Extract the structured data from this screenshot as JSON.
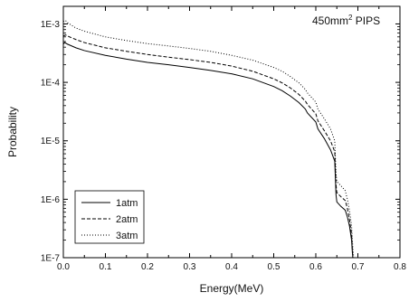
{
  "chart_data": {
    "type": "line",
    "title": "",
    "annotation": {
      "text": "450mm",
      "superscript": "2",
      "suffix": " PIPS"
    },
    "xlabel": "Energy(MeV)",
    "ylabel": "Probability",
    "xlim": [
      0.0,
      0.8
    ],
    "ylim": [
      1e-07,
      0.002
    ],
    "yscale": "log",
    "grid": false,
    "legend_position": "bottom-left",
    "x_ticks": [
      0.0,
      0.1,
      0.2,
      0.3,
      0.4,
      0.5,
      0.6,
      0.7,
      0.8
    ],
    "x_tick_labels": [
      "0.0",
      "0.1",
      "0.2",
      "0.3",
      "0.4",
      "0.5",
      "0.6",
      "0.7",
      "0.8"
    ],
    "y_ticks": [
      1e-07,
      1e-06,
      1e-05,
      0.0001,
      0.001
    ],
    "y_tick_labels": [
      "1E-7",
      "1E-6",
      "1E-5",
      "1E-4",
      "1E-3"
    ],
    "series": [
      {
        "name": "1atm",
        "style": "solid",
        "x": [
          0.0,
          0.003,
          0.01,
          0.03,
          0.05,
          0.1,
          0.15,
          0.2,
          0.25,
          0.3,
          0.35,
          0.4,
          0.45,
          0.5,
          0.52,
          0.54,
          0.56,
          0.575,
          0.58,
          0.6,
          0.605,
          0.62,
          0.635,
          0.645,
          0.648,
          0.65,
          0.66,
          0.67,
          0.675,
          0.68,
          0.685,
          0.687,
          0.688
        ],
        "y": [
          0.00045,
          0.00048,
          0.00045,
          0.00039,
          0.00035,
          0.00029,
          0.00025,
          0.00022,
          0.0002,
          0.00018,
          0.00016,
          0.00014,
          0.000115,
          8.5e-05,
          7.2e-05,
          5.8e-05,
          4.5e-05,
          3.5e-05,
          3e-05,
          2.1e-05,
          1.6e-05,
          1.1e-05,
          7e-06,
          4.5e-06,
          1.2e-06,
          9e-07,
          7.5e-07,
          6.5e-07,
          5e-07,
          3.5e-07,
          2e-07,
          1.2e-07,
          1e-07
        ]
      },
      {
        "name": "2atm",
        "style": "dashed",
        "x": [
          0.0,
          0.005,
          0.01,
          0.03,
          0.05,
          0.1,
          0.15,
          0.2,
          0.25,
          0.3,
          0.35,
          0.4,
          0.45,
          0.5,
          0.52,
          0.54,
          0.56,
          0.575,
          0.58,
          0.6,
          0.605,
          0.62,
          0.635,
          0.645,
          0.648,
          0.65,
          0.66,
          0.67,
          0.675,
          0.68,
          0.685,
          0.687,
          0.688
        ],
        "y": [
          0.00062,
          0.00065,
          0.00062,
          0.00054,
          0.00048,
          0.00039,
          0.00034,
          0.0003,
          0.00027,
          0.000245,
          0.00022,
          0.00019,
          0.000155,
          0.000115,
          9.8e-05,
          8e-05,
          6.2e-05,
          4.8e-05,
          4.2e-05,
          2.9e-05,
          2.2e-05,
          1.5e-05,
          1e-05,
          6.5e-06,
          1.8e-06,
          1.3e-06,
          1.1e-06,
          9.5e-07,
          7e-07,
          4.5e-07,
          2.5e-07,
          1.3e-07,
          1e-07
        ]
      },
      {
        "name": "3atm",
        "style": "dotted",
        "x": [
          0.0,
          0.005,
          0.01,
          0.03,
          0.05,
          0.1,
          0.15,
          0.2,
          0.25,
          0.3,
          0.35,
          0.4,
          0.45,
          0.5,
          0.52,
          0.54,
          0.56,
          0.575,
          0.58,
          0.6,
          0.605,
          0.62,
          0.635,
          0.645,
          0.648,
          0.65,
          0.66,
          0.67,
          0.675,
          0.68,
          0.685,
          0.688,
          0.69
        ],
        "y": [
          0.0011,
          0.00115,
          0.00105,
          0.00085,
          0.00075,
          0.0006,
          0.00052,
          0.00046,
          0.00042,
          0.00038,
          0.00034,
          0.00029,
          0.00024,
          0.00018,
          0.000155,
          0.000125,
          9.8e-05,
          7.6e-05,
          6.6e-05,
          4.6e-05,
          3.5e-05,
          2.4e-05,
          1.6e-05,
          1e-05,
          2.8e-06,
          2e-06,
          1.7e-06,
          1.4e-06,
          1e-06,
          6.5e-07,
          3.5e-07,
          1.5e-07,
          1e-07
        ]
      }
    ]
  }
}
